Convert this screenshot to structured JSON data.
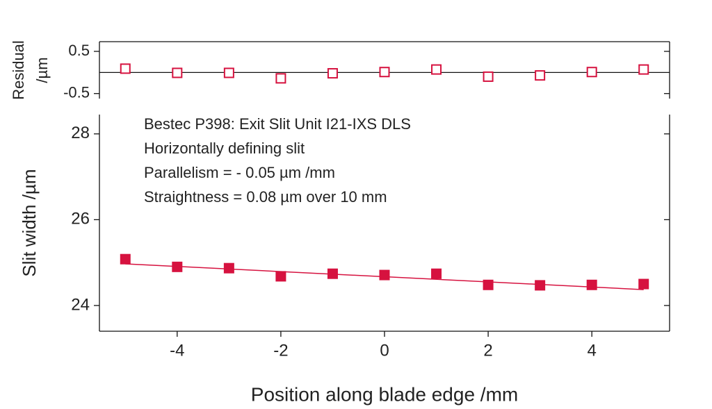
{
  "chart_data": [
    {
      "type": "scatter",
      "ylabel": [
        "Residual",
        "/µm"
      ],
      "x": [
        -5,
        -4,
        -3,
        -2,
        -1,
        0,
        1,
        2,
        3,
        4,
        5
      ],
      "xlim": [
        -5.5,
        5.5
      ],
      "ylim": [
        -0.62,
        0.73
      ],
      "yticks": [
        0.5,
        -0.5
      ],
      "zero_line": true,
      "series": [
        {
          "color": "#d6123f",
          "marker": "open-square",
          "values": [
            0.09,
            -0.01,
            -0.01,
            -0.14,
            -0.02,
            0.01,
            0.07,
            -0.1,
            -0.07,
            0.01,
            0.07
          ]
        }
      ]
    },
    {
      "type": "scatter",
      "xlabel": "Position along blade edge /mm",
      "ylabel": "Slit width /µm",
      "annotations": [
        "Bestec P398: Exit Slit Unit I21-IXS DLS",
        "Horizontally defining slit",
        "Parallelism = - 0.05 µm /mm",
        "Straightness = 0.08 µm over 10 mm"
      ],
      "x": [
        -5,
        -4,
        -3,
        -2,
        -1,
        0,
        1,
        2,
        3,
        4,
        5
      ],
      "xlim": [
        -5.5,
        5.5
      ],
      "xticks": [
        -4,
        -2,
        0,
        2,
        4
      ],
      "ylim": [
        23.4,
        28.45
      ],
      "yticks": [
        24,
        26,
        28
      ],
      "series": [
        {
          "color": "#d6123f",
          "marker": "filled-square",
          "values": [
            25.08,
            24.9,
            24.87,
            24.68,
            24.74,
            24.71,
            24.74,
            24.48,
            24.47,
            24.48,
            24.5
          ]
        },
        {
          "color": "#d6123f",
          "marker": "line",
          "x": [
            -5,
            5
          ],
          "values": [
            24.97,
            24.37
          ]
        }
      ]
    }
  ]
}
